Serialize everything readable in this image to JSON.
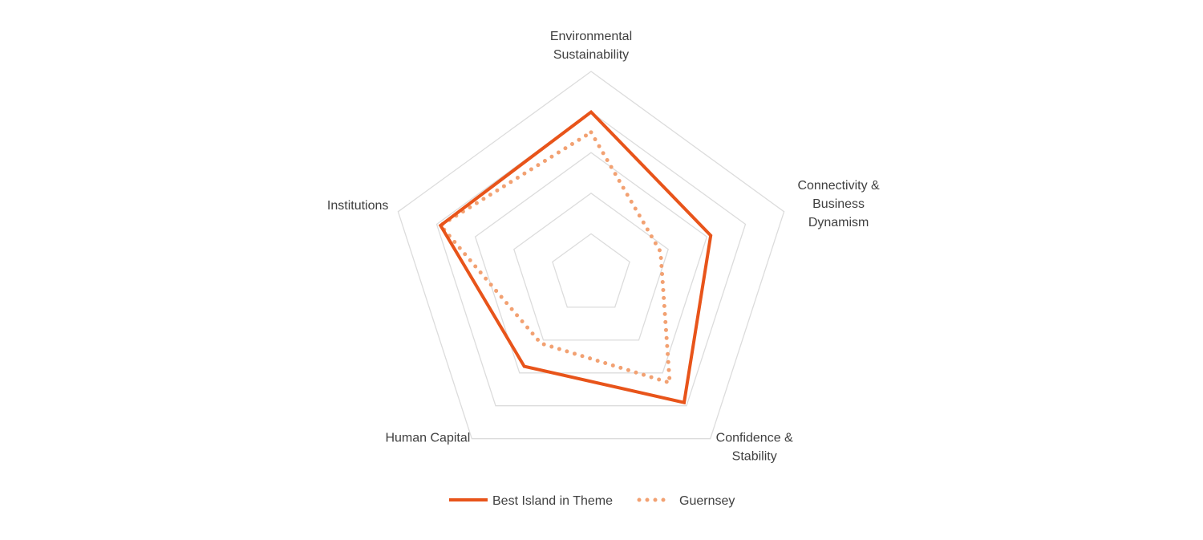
{
  "chart_data": {
    "type": "radar",
    "axes": [
      {
        "lines": [
          "Environmental",
          "Sustainability"
        ]
      },
      {
        "lines": [
          "Connectivity &",
          "Business",
          "Dynamism"
        ]
      },
      {
        "lines": [
          "Confidence &",
          "Stability"
        ]
      },
      {
        "lines": [
          "Human Capital"
        ]
      },
      {
        "lines": [
          "Institutions"
        ]
      }
    ],
    "rings": 5,
    "rlim": [
      0,
      5
    ],
    "series": [
      {
        "name": "Best Island in Theme",
        "color": "#E8541A",
        "style": "solid",
        "values": [
          4.0,
          3.1,
          3.9,
          2.8,
          3.9
        ]
      },
      {
        "name": "Guernsey",
        "color": "#F2A172",
        "style": "dotted",
        "values": [
          3.5,
          1.8,
          3.3,
          2.1,
          3.9
        ]
      }
    ],
    "legend": "bottom",
    "grid": true
  }
}
